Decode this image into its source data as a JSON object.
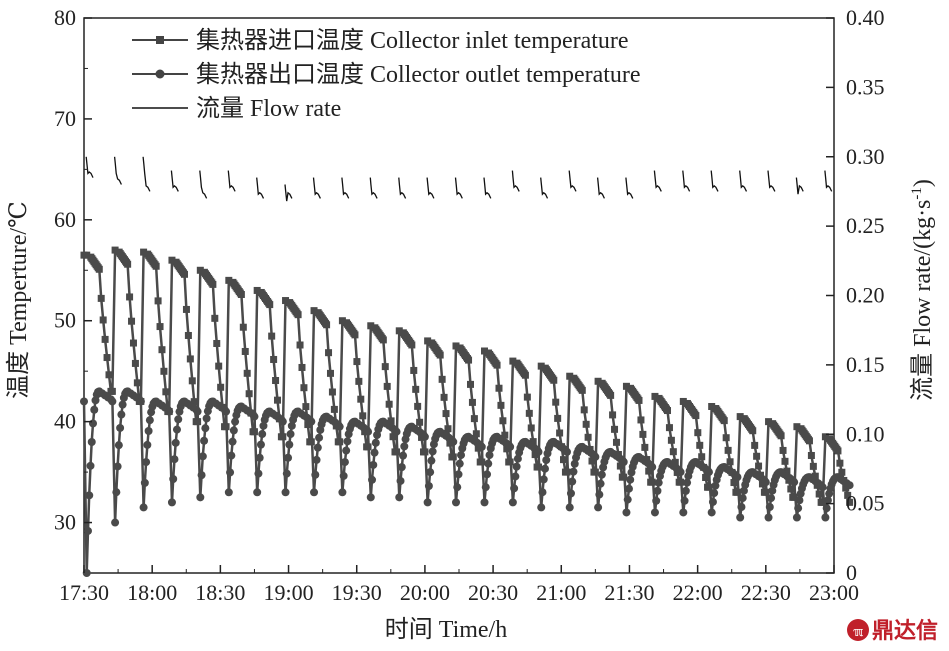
{
  "chart_data": {
    "type": "line",
    "xlabel": "时间 Time/h",
    "ylabel_left": "温度 Temperture/℃",
    "ylabel_right": "流量 Flow rate/(kg·s",
    "ylabel_right_sup": "-1",
    "ylabel_right_close": ")",
    "x_tick_labels": [
      "17:30",
      "18:00",
      "18:30",
      "19:00",
      "19:30",
      "20:00",
      "20:30",
      "21:00",
      "21:30",
      "22:00",
      "22:30",
      "23:00"
    ],
    "x_tick_hours": [
      17.5,
      18,
      18.5,
      19,
      19.5,
      20,
      20.5,
      21,
      21.5,
      22,
      22.5,
      23
    ],
    "xlim": [
      17.5,
      23
    ],
    "ylim_left": [
      25,
      80
    ],
    "ylim_right": [
      0,
      0.4
    ],
    "y_left_ticks": [
      30,
      40,
      50,
      60,
      70,
      80
    ],
    "y_right_ticks": [
      "0",
      "0.05",
      "0.10",
      "0.15",
      "0.20",
      "0.25",
      "0.30",
      "0.35",
      "0.40"
    ],
    "grid": false,
    "legend_position": "top-left",
    "cycle_start_hours": [
      17.5,
      17.708,
      17.917,
      18.125,
      18.333,
      18.542,
      18.75,
      18.958,
      19.167,
      19.375,
      19.583,
      19.792,
      20.0,
      20.208,
      20.417,
      20.625,
      20.833,
      21.042,
      21.25,
      21.458,
      21.667,
      21.875,
      22.083,
      22.292,
      22.5,
      22.708,
      22.917
    ],
    "series": [
      {
        "name": "集热器进口温度 Collector inlet temperature",
        "axis": "left",
        "marker": "square",
        "cycle_plateau": [
          56.5,
          57.0,
          56.8,
          56.0,
          55.0,
          54.0,
          53.0,
          52.0,
          51.0,
          50.0,
          49.5,
          49.0,
          48.0,
          47.5,
          47.0,
          46.0,
          45.5,
          44.5,
          44.0,
          43.5,
          42.5,
          42.0,
          41.5,
          40.5,
          40.0,
          39.5,
          38.5
        ],
        "cycle_drop_end": [
          43.0,
          42.0,
          41.0,
          40.0,
          39.5,
          39.0,
          38.5,
          38.0,
          38.0,
          37.5,
          37.0,
          37.0,
          36.5,
          36.0,
          36.0,
          35.5,
          35.0,
          35.0,
          34.5,
          34.0,
          34.0,
          33.5,
          33.0,
          33.0,
          32.5,
          32.0,
          32.0
        ]
      },
      {
        "name": "集热器出口温度 Collector outlet temperature",
        "axis": "left",
        "marker": "circle",
        "cycle_min": [
          25.0,
          30.0,
          31.5,
          32.0,
          32.5,
          33.0,
          33.0,
          33.0,
          33.0,
          33.0,
          32.5,
          32.5,
          32.0,
          32.0,
          32.0,
          32.0,
          31.5,
          31.5,
          31.5,
          31.0,
          31.0,
          31.0,
          31.0,
          30.5,
          30.5,
          30.5,
          30.5
        ],
        "cycle_peak": [
          43.0,
          43.0,
          42.0,
          42.0,
          42.0,
          41.5,
          41.0,
          41.0,
          40.5,
          40.0,
          40.0,
          39.5,
          39.0,
          38.5,
          38.5,
          38.0,
          38.0,
          37.5,
          37.0,
          36.5,
          36.0,
          36.0,
          35.5,
          35.0,
          35.0,
          34.5,
          34.5
        ]
      },
      {
        "name": "流量 Flow rate",
        "axis": "right",
        "marker": "none",
        "cycle_peak": [
          0.3,
          0.3,
          0.3,
          0.29,
          0.29,
          0.29,
          0.285,
          0.28,
          0.285,
          0.285,
          0.285,
          0.285,
          0.285,
          0.285,
          0.285,
          0.29,
          0.285,
          0.29,
          0.285,
          0.285,
          0.29,
          0.29,
          0.29,
          0.29,
          0.29,
          0.285,
          0.29
        ],
        "cycle_low": [
          0.285,
          0.28,
          0.275,
          0.275,
          0.27,
          0.275,
          0.27,
          0.27,
          0.27,
          0.27,
          0.27,
          0.27,
          0.27,
          0.27,
          0.27,
          0.275,
          0.27,
          0.275,
          0.27,
          0.27,
          0.275,
          0.275,
          0.275,
          0.275,
          0.275,
          0.275,
          0.275
        ]
      }
    ]
  },
  "watermark": {
    "text": "鼎达信",
    "color": "#c0202a"
  }
}
